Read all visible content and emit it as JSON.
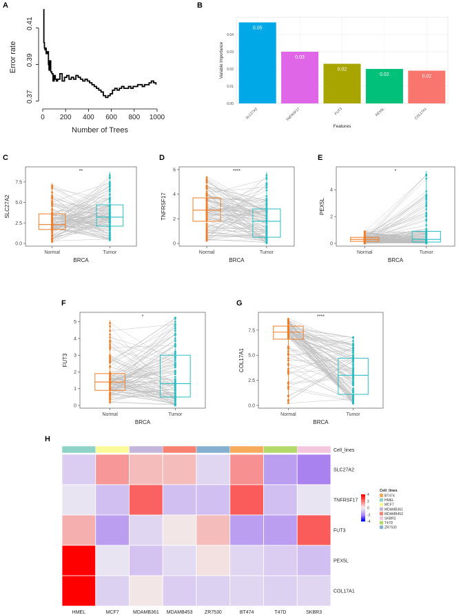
{
  "panel_letters": [
    "A",
    "B",
    "C",
    "D",
    "E",
    "F",
    "G",
    "H"
  ],
  "colors": {
    "normal": "#F07C26",
    "tumor": "#26BDC2",
    "pair_line": "#BEBEBE",
    "bar_slc27a2": "#00A8E8",
    "bar_tnfrsf17": "#E066E8",
    "bar_fut3": "#A8A400",
    "bar_pex5l": "#00C07A",
    "bar_col17a1": "#F8766D",
    "heat_high": "#FF0000",
    "heat_mid": "#F2F2F2",
    "heat_low": "#0000EE"
  },
  "chart_data": [
    {
      "panel": "A",
      "type": "line",
      "xlabel": "Number of Trees",
      "ylabel": "Error rate",
      "xlim": [
        0,
        1000
      ],
      "ylim": [
        0.368,
        0.42
      ],
      "xticks": [
        "0",
        "200",
        "400",
        "600",
        "800",
        "1000"
      ],
      "yticks": [
        "0.37",
        "0.39",
        "0.41"
      ],
      "x": [
        5,
        10,
        15,
        20,
        25,
        30,
        40,
        50,
        55,
        60,
        70,
        80,
        90,
        100,
        110,
        120,
        130,
        150,
        170,
        190,
        210,
        230,
        250,
        270,
        290,
        310,
        330,
        350,
        370,
        390,
        410,
        430,
        450,
        470,
        490,
        510,
        530,
        550,
        570,
        590,
        610,
        630,
        650,
        670,
        690,
        710,
        730,
        750,
        770,
        790,
        810,
        830,
        850,
        870,
        890,
        910,
        930,
        950,
        970,
        990
      ],
      "y": [
        0.42,
        0.402,
        0.399,
        0.398,
        0.399,
        0.396,
        0.397,
        0.39,
        0.387,
        0.392,
        0.386,
        0.385,
        0.381,
        0.384,
        0.382,
        0.381,
        0.382,
        0.385,
        0.381,
        0.383,
        0.384,
        0.382,
        0.383,
        0.382,
        0.384,
        0.383,
        0.382,
        0.381,
        0.382,
        0.381,
        0.38,
        0.379,
        0.378,
        0.377,
        0.376,
        0.375,
        0.373,
        0.372,
        0.373,
        0.374,
        0.376,
        0.377,
        0.376,
        0.377,
        0.378,
        0.377,
        0.377,
        0.378,
        0.377,
        0.378,
        0.378,
        0.379,
        0.379,
        0.378,
        0.379,
        0.379,
        0.38,
        0.381,
        0.38,
        0.379
      ]
    },
    {
      "panel": "B",
      "type": "bar",
      "xlabel": "Features",
      "ylabel": "Variable Importance",
      "categories": [
        "SLC27A2",
        "TNFRSF17",
        "FUT3",
        "PEX5L",
        "COL17A1"
      ],
      "values": [
        0.047,
        0.03,
        0.023,
        0.02,
        0.019
      ],
      "data_labels": [
        "0.05",
        "0.03",
        "0.02",
        "0.02",
        "0.02"
      ],
      "ylim": [
        0,
        0.05
      ],
      "yticks": [
        "0.00",
        "0.01",
        "0.02",
        "0.03",
        "0.04"
      ]
    },
    {
      "panel": "C",
      "type": "box-paired",
      "gene": "SLC27A2",
      "xlabel": "BRCA",
      "ylabel": "SLC27A2",
      "significance": "**",
      "categories": [
        "Normal",
        "Tumor"
      ],
      "ylim": [
        0,
        9
      ],
      "yticks": [
        "0.0",
        "2.5",
        "5.0",
        "7.5"
      ],
      "ytick_values": [
        0,
        2.5,
        5,
        7.5
      ],
      "normal": {
        "min": 0.1,
        "q1": 1.7,
        "median": 2.3,
        "q3": 3.6,
        "max": 7.3
      },
      "tumor": {
        "min": 0.3,
        "q1": 2.1,
        "median": 3.2,
        "q3": 4.7,
        "max": 8.7
      },
      "n_pairs": 110
    },
    {
      "panel": "D",
      "type": "box-paired",
      "gene": "TNFRSF17",
      "xlabel": "BRCA",
      "ylabel": "TNFRSF17",
      "significance": "****",
      "categories": [
        "Normal",
        "Tumor"
      ],
      "ylim": [
        0,
        6
      ],
      "yticks": [
        "0",
        "2",
        "4",
        "6"
      ],
      "ytick_values": [
        0,
        2,
        4,
        6
      ],
      "normal": {
        "min": 0.2,
        "q1": 1.8,
        "median": 2.7,
        "q3": 3.7,
        "max": 5.4
      },
      "tumor": {
        "min": 0.0,
        "q1": 0.5,
        "median": 1.8,
        "q3": 2.8,
        "max": 5.8
      },
      "n_pairs": 110
    },
    {
      "panel": "E",
      "type": "box-paired",
      "gene": "PEX5L",
      "xlabel": "BRCA",
      "ylabel": "PEX5L",
      "significance": "*",
      "categories": [
        "Normal",
        "Tumor"
      ],
      "ylim": [
        0,
        5.5
      ],
      "yticks": [
        "0",
        "2",
        "4"
      ],
      "ytick_values": [
        0,
        2,
        4
      ],
      "normal": {
        "min": 0.0,
        "q1": 0.15,
        "median": 0.3,
        "q3": 0.45,
        "max": 0.9
      },
      "tumor": {
        "min": 0.0,
        "q1": 0.1,
        "median": 0.3,
        "q3": 0.9,
        "max": 5.4
      },
      "n_pairs": 110
    },
    {
      "panel": "F",
      "type": "box-paired",
      "gene": "FUT3",
      "xlabel": "BRCA",
      "ylabel": "FUT3",
      "significance": "*",
      "categories": [
        "Normal",
        "Tumor"
      ],
      "ylim": [
        0,
        5.4
      ],
      "yticks": [
        "0",
        "1",
        "2",
        "3",
        "4",
        "5"
      ],
      "ytick_values": [
        0,
        1,
        2,
        3,
        4,
        5
      ],
      "normal": {
        "min": 0.1,
        "q1": 0.9,
        "median": 1.4,
        "q3": 1.9,
        "max": 5.1
      },
      "tumor": {
        "min": 0.0,
        "q1": 0.5,
        "median": 1.3,
        "q3": 3.0,
        "max": 5.3
      },
      "n_pairs": 110
    },
    {
      "panel": "G",
      "type": "box-paired",
      "gene": "COL17A1",
      "xlabel": "BRCA",
      "ylabel": "COL17A1",
      "significance": "****",
      "categories": [
        "Normal",
        "Tumor"
      ],
      "ylim": [
        0,
        9
      ],
      "yticks": [
        "0.0",
        "2.5",
        "5.0",
        "7.5"
      ],
      "ytick_values": [
        0,
        2.5,
        5,
        7.5
      ],
      "normal": {
        "min": 0.2,
        "q1": 6.6,
        "median": 7.3,
        "q3": 7.9,
        "max": 8.7
      },
      "tumor": {
        "min": 0.1,
        "q1": 1.1,
        "median": 3.0,
        "q3": 4.7,
        "max": 6.9
      },
      "n_pairs": 110
    },
    {
      "panel": "H",
      "type": "heatmap",
      "columns": [
        "HMEL",
        "MCF7",
        "MDAMB361",
        "MDAMB453",
        "ZR7530",
        "BT474",
        "T47D",
        "SKBR3"
      ],
      "rows": [
        "SLC27A2",
        "TNFRSF17",
        "FUT3",
        "PEX5L",
        "COL17A1"
      ],
      "values": [
        [
          -0.8,
          1.5,
          0.9,
          0.9,
          -0.6,
          1.6,
          -1.8,
          -2.4
        ],
        [
          -0.3,
          -1.1,
          2.4,
          -1.1,
          -1.1,
          2.5,
          -1.1,
          -0.3
        ],
        [
          1.1,
          -1.8,
          -0.6,
          0.2,
          0.9,
          -1.8,
          -1.8,
          2.5
        ],
        [
          4.0,
          -0.3,
          -1.0,
          -0.5,
          0.3,
          -0.6,
          -0.8,
          -1.1
        ],
        [
          4.0,
          -0.7,
          0.2,
          -0.8,
          -0.7,
          -0.6,
          -0.7,
          -0.6
        ]
      ],
      "annotation_label": "Cell_lines",
      "annotation_colors": {
        "HMEL": "#8FD3C8",
        "MCF7": "#FAFA99",
        "MDAMB361": "#C3B5DC",
        "MDAMB453": "#F88070",
        "ZR7530": "#84AFCF",
        "BT474": "#F5AA5C",
        "T47D": "#B2D96A",
        "SKBR3": "#F4C6DE"
      },
      "legend_title": "Cell_lines",
      "legend_order": [
        "BT474",
        "HMEL",
        "MCF7",
        "MDAMB361",
        "MDAMB453",
        "SKBR3",
        "T47D",
        "ZR7530"
      ],
      "scale_range": [
        -4,
        4
      ],
      "scale_ticks": [
        "4",
        "2",
        "0",
        "-2",
        "-4"
      ]
    }
  ]
}
